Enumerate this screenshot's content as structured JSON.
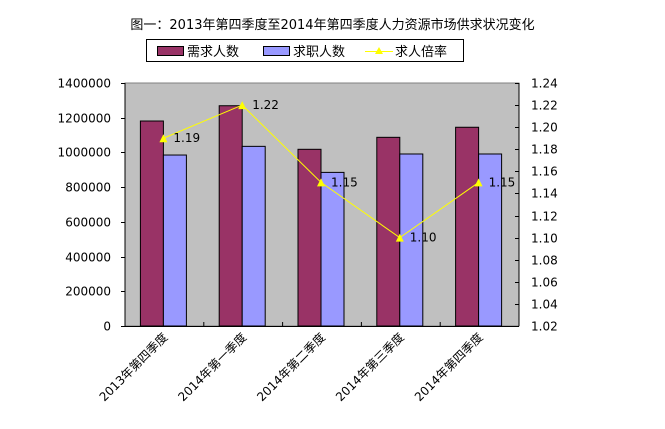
{
  "title": "图一：2013年第四季度至2014年第四季度人力资源市场供求状况变化",
  "legend": {
    "items": [
      {
        "label": "需求人数",
        "color": "#993366",
        "type": "bar"
      },
      {
        "label": "求职人数",
        "color": "#9999ff",
        "type": "bar"
      },
      {
        "label": "求人倍率",
        "color": "#ffff00",
        "type": "line"
      }
    ]
  },
  "chart_data": {
    "type": "bar",
    "title": "图一：2013年第四季度至2014年第四季度人力资源市场供求状况变化",
    "categories": [
      "2013年第四季度",
      "2014年第一季度",
      "2014年第二季度",
      "2014年第三季度",
      "2014年第四季度"
    ],
    "series": [
      {
        "name": "需求人数",
        "type": "bar",
        "axis": "left",
        "color": "#993366",
        "values": [
          1181000,
          1269000,
          1018000,
          1087000,
          1145000
        ]
      },
      {
        "name": "求职人数",
        "type": "bar",
        "axis": "left",
        "color": "#9999ff",
        "values": [
          985000,
          1035000,
          885000,
          991000,
          991000
        ]
      },
      {
        "name": "求人倍率",
        "type": "line",
        "axis": "right",
        "color": "#ffff00",
        "values": [
          1.19,
          1.22,
          1.15,
          1.1,
          1.15
        ],
        "labels": [
          "1.19",
          "1.22",
          "1.15",
          "1.10",
          "1.15"
        ]
      }
    ],
    "xlabel": "",
    "ylabel": "",
    "ylim": [
      0,
      1400000
    ],
    "y2lim": [
      1.02,
      1.24
    ],
    "yticks": [
      "1400000",
      "1200000",
      "1000000",
      "800000",
      "600000",
      "400000",
      "200000",
      "0"
    ],
    "y2ticks": [
      "1.24",
      "1.22",
      "1.20",
      "1.18",
      "1.16",
      "1.14",
      "1.12",
      "1.10",
      "1.08",
      "1.06",
      "1.04",
      "1.02"
    ],
    "grid": false,
    "legend_position": "top",
    "plot_background": "#c0c0c0"
  }
}
